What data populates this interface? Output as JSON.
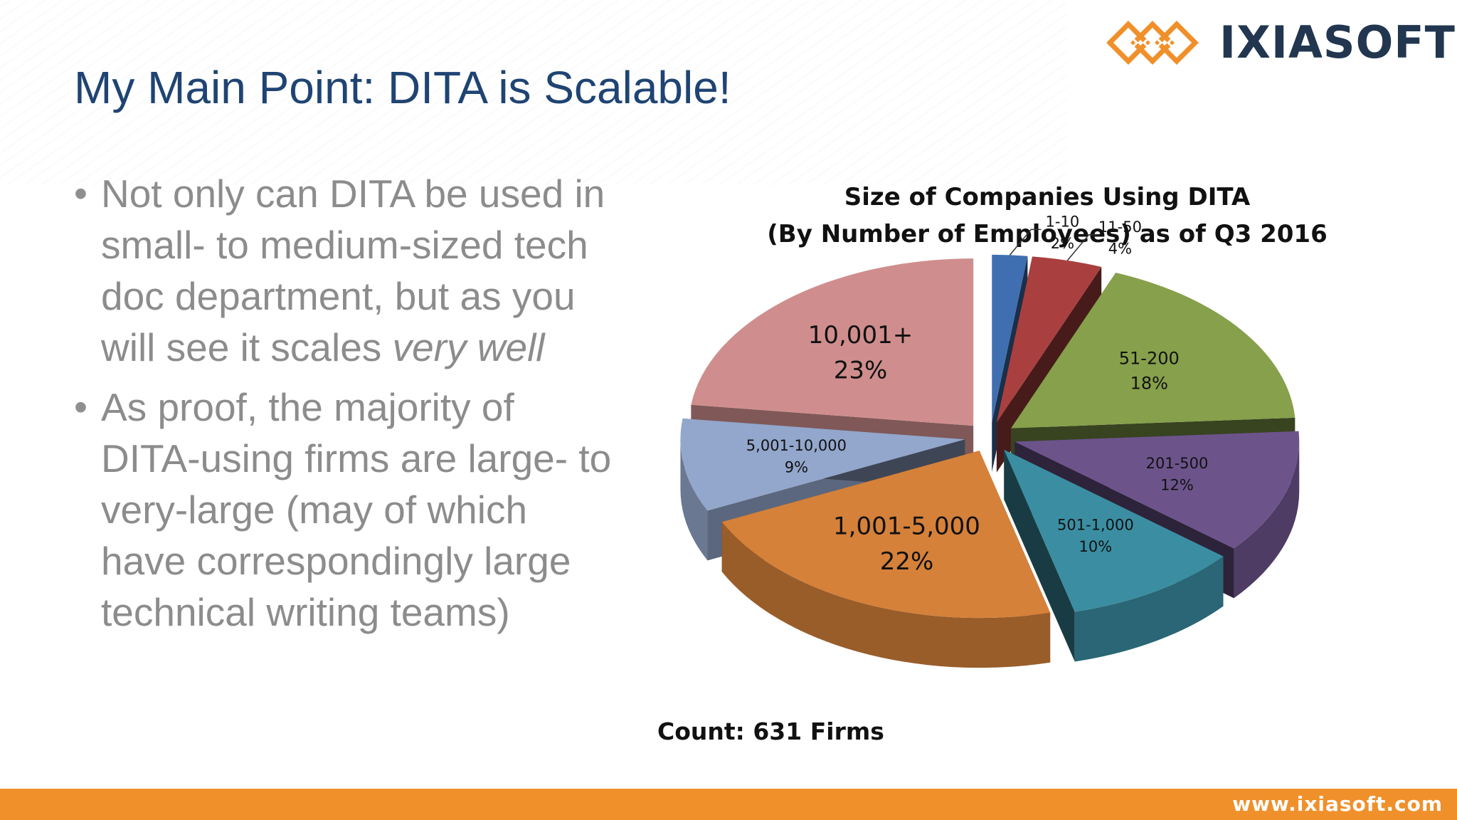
{
  "brand": {
    "logo_text": "IXIASOFT",
    "logo_mark_icon": "ixiasoft-diamond-mark-icon",
    "accent_color": "#f0902b",
    "text_color": "#22364f"
  },
  "slide": {
    "title": "My Main Point: DITA is Scalable!",
    "bullets": [
      {
        "text": "Not only can DITA be used in small- to medium-sized tech doc department, but as you will see it scales ",
        "emphasis": "very well"
      },
      {
        "text": "As proof, the majority of DITA-using firms are large- to very-large (may of which have correspondingly large technical writing teams)",
        "emphasis": ""
      }
    ]
  },
  "chart_data": {
    "type": "pie",
    "title": "Size of Companies Using DITA",
    "subtitle": "(By Number of Employees) as of Q3 2016",
    "note": "Count: 631 Firms",
    "slices": [
      {
        "label": "1-10",
        "value": 2,
        "display": "2%",
        "color": "#3f6fb0"
      },
      {
        "label": "11-50",
        "value": 4,
        "display": "4%",
        "color": "#a9403f"
      },
      {
        "label": "51-200",
        "value": 18,
        "display": "18%",
        "color": "#86a04b"
      },
      {
        "label": "201-500",
        "value": 12,
        "display": "12%",
        "color": "#6c548b"
      },
      {
        "label": "501-1,000",
        "value": 10,
        "display": "10%",
        "color": "#3b8ea2"
      },
      {
        "label": "1,001-5,000",
        "value": 22,
        "display": "22%",
        "color": "#d5813a"
      },
      {
        "label": "5,001-10,000",
        "value": 9,
        "display": "9%",
        "color": "#93a6cb"
      },
      {
        "label": "10,001+",
        "value": 23,
        "display": "23%",
        "color": "#cf8e8d"
      }
    ]
  },
  "footer": {
    "url": "www.ixiasoft.com"
  }
}
